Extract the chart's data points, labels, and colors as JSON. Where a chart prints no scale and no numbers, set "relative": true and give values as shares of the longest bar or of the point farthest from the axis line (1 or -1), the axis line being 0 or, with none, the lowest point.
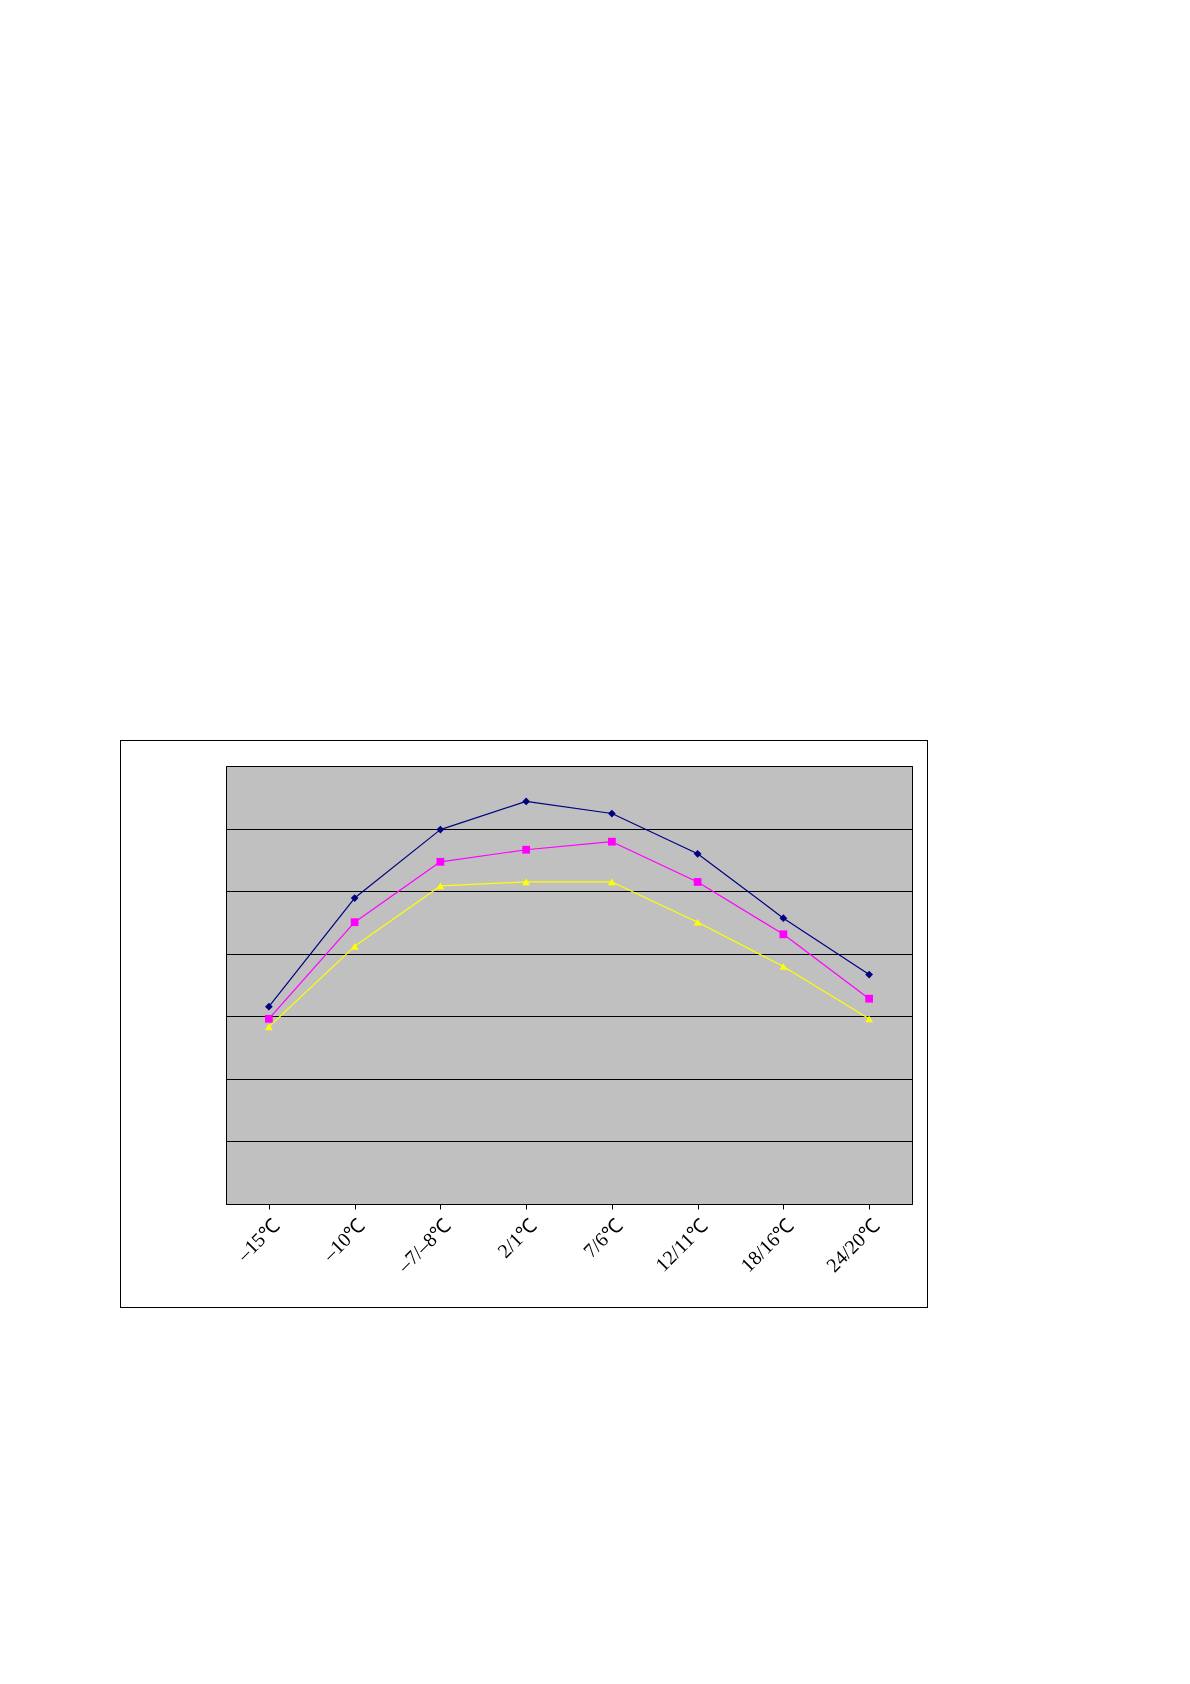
{
  "chart_data": {
    "type": "line",
    "relative": true,
    "categories": [
      "–15℃",
      "–10℃",
      "–7/–8℃",
      "2/1℃",
      "7/6℃",
      "12/11℃",
      "18/16℃",
      "24/20℃"
    ],
    "grid": "y",
    "series": [
      {
        "color": "#000080",
        "marker": "diamond",
        "values": [
          0.49,
          0.76,
          0.93,
          1,
          0.97,
          0.87,
          0.71,
          0.57
        ]
      },
      {
        "color": "#ff00ff",
        "marker": "square",
        "values": [
          0.46,
          0.7,
          0.85,
          0.88,
          0.9,
          0.8,
          0.67,
          0.51
        ]
      },
      {
        "color": "#ffff00",
        "marker": "triangle",
        "values": [
          0.44,
          0.64,
          0.79,
          0.8,
          0.8,
          0.7,
          0.59,
          0.46
        ]
      }
    ]
  }
}
